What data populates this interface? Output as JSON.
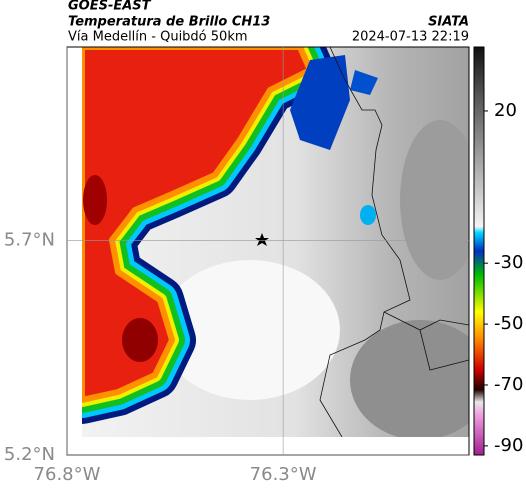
{
  "map": {
    "title": "GOES-EAST",
    "subtitle": "Temperatura de Brillo CH13",
    "route": "Vía Medellín - Quibdó 50km",
    "source": "SIATA",
    "datetime": "2024-07-13 22:19",
    "xlim": [
      -76.8,
      -75.87
    ],
    "ylim": [
      5.2,
      6.15
    ],
    "xticks": [
      {
        "value": -76.8,
        "label": "76.8°W"
      },
      {
        "value": -76.3,
        "label": "76.3°W"
      }
    ],
    "yticks": [
      {
        "value": 5.2,
        "label": "5.2°N"
      },
      {
        "value": 5.7,
        "label": "5.7°N"
      }
    ],
    "colorbar": {
      "lim": [
        41,
        -93
      ],
      "ticks": [
        20,
        -30,
        -50,
        -70,
        -90
      ]
    }
  }
}
